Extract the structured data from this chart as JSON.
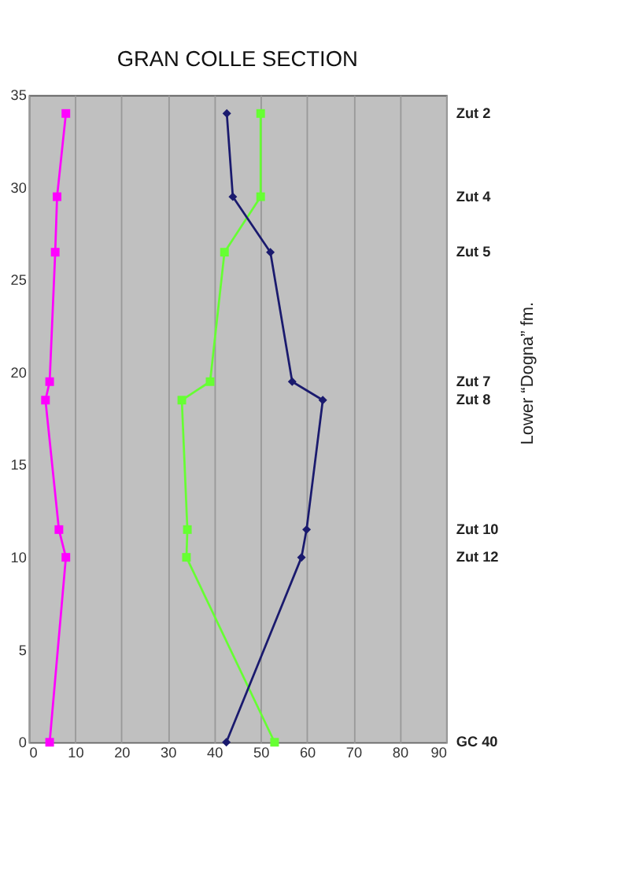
{
  "chart_data": {
    "type": "line",
    "title": "GRAN COLLE SECTION",
    "xlim": [
      0,
      90
    ],
    "xticks": [
      0,
      10,
      20,
      30,
      40,
      50,
      60,
      70,
      80,
      90
    ],
    "ylim": [
      0,
      35
    ],
    "yticks": [
      0,
      5,
      10,
      15,
      20,
      25,
      30,
      35
    ],
    "annotations": [
      "Zut 2",
      "Zut 4",
      "Zut 5",
      "Zut 7",
      "Zut 8",
      "Zut 10",
      "Zut 12",
      "GC 40",
      "Lower “Dogna” fm."
    ],
    "grid": "x",
    "line_style": "solid",
    "series": [
      {
        "color": "#ff00ff",
        "marker": "square",
        "x": [
          8.0,
          6.1,
          5.7,
          4.5,
          3.6,
          6.5,
          8.0,
          4.5
        ],
        "values": [
          34,
          29.5,
          26.5,
          19.5,
          18.5,
          11.5,
          10,
          0
        ]
      },
      {
        "color": "#66ff33",
        "marker": "square",
        "x": [
          50,
          50,
          42.2,
          39.1,
          33.0,
          34.2,
          34,
          53
        ],
        "values": [
          34,
          29.5,
          26.5,
          19.5,
          18.5,
          11.5,
          10,
          0
        ]
      },
      {
        "color": "#1a1a6e",
        "marker": "diamond",
        "x": [
          42.7,
          44,
          52.1,
          56.8,
          63.4,
          59.9,
          58.8,
          42.6
        ],
        "values": [
          34,
          29.5,
          26.5,
          19.5,
          18.5,
          11.5,
          10,
          0
        ]
      }
    ]
  }
}
